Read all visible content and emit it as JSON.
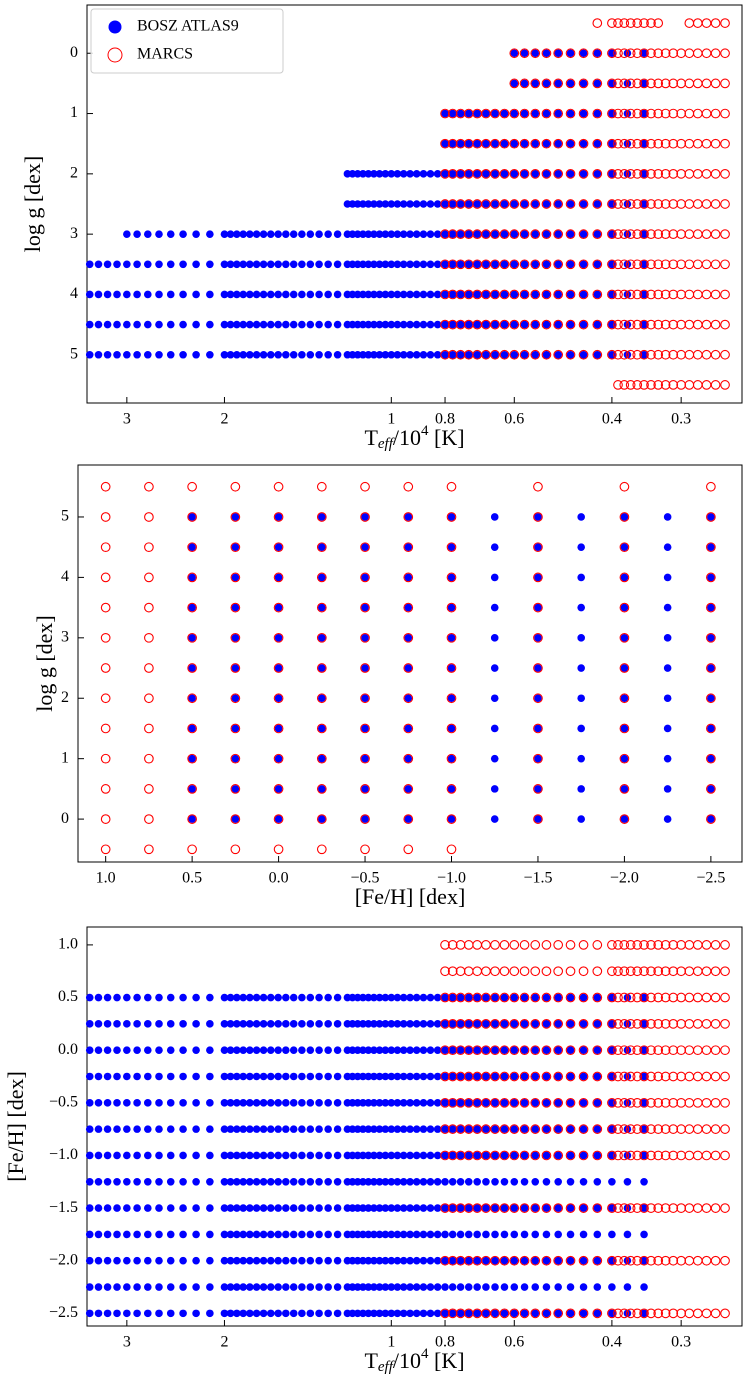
{
  "chart_data": [
    {
      "type": "scatter",
      "xscale": "log",
      "xlabel": {
        "main": "T",
        "sub": "eff",
        "mid": "/10",
        "sup": "4",
        "unit": " [K]"
      },
      "ylabel": "log g [dex]",
      "xlim": [
        3.54,
        0.233
      ],
      "ylim": [
        5.8,
        -0.8
      ],
      "xticks": [
        3,
        2,
        1,
        0.8,
        0.6,
        0.4,
        0.3
      ],
      "yticks": [
        0,
        1,
        2,
        3,
        4,
        5
      ],
      "legend": "upper left",
      "series": [
        {
          "name": "BOSZ ATLAS9",
          "color": "#0000ff",
          "marker": "filled",
          "x": [
            0.35,
            0.375,
            0.4,
            0.425,
            0.45,
            0.475,
            0.5,
            0.525,
            0.55,
            0.575,
            0.6,
            0.625,
            0.65,
            0.675,
            0.7,
            0.725,
            0.75,
            0.775,
            0.8,
            0.825,
            0.85,
            0.875,
            0.9,
            0.925,
            0.95,
            0.975,
            1.0,
            1.025,
            1.05,
            1.075,
            1.1,
            1.125,
            1.15,
            1.175,
            1.2,
            1.25,
            1.3,
            1.35,
            1.4,
            1.45,
            1.5,
            1.55,
            1.6,
            1.65,
            1.7,
            1.75,
            1.8,
            1.85,
            1.9,
            1.95,
            2.0,
            2.125,
            2.25,
            2.375,
            2.5,
            2.625,
            2.75,
            2.875,
            3.0,
            3.125,
            3.25,
            3.375,
            3.5
          ],
          "rows": [
            {
              "y": 0,
              "x_range": [
                0.35,
                0.6
              ]
            },
            {
              "y": 0.5,
              "x_range": [
                0.35,
                0.6
              ]
            },
            {
              "y": 1,
              "x_range": [
                0.35,
                0.8
              ]
            },
            {
              "y": 1.5,
              "x_range": [
                0.35,
                0.8
              ]
            },
            {
              "y": 2,
              "x_range": [
                0.35,
                1.2
              ]
            },
            {
              "y": 2.5,
              "x_range": [
                0.35,
                1.2
              ]
            },
            {
              "y": 3,
              "x_range": [
                0.35,
                3.0
              ]
            },
            {
              "y": 3.5,
              "x_range": [
                0.35,
                3.5
              ]
            },
            {
              "y": 4,
              "x_range": [
                0.35,
                3.5
              ]
            },
            {
              "y": 4.5,
              "x_range": [
                0.35,
                3.5
              ]
            },
            {
              "y": 5,
              "x_range": [
                0.35,
                3.5
              ]
            }
          ]
        },
        {
          "name": "MARCS",
          "color": "#ff0000",
          "marker": "open",
          "x": [
            0.25,
            0.26,
            0.27,
            0.28,
            0.29,
            0.3,
            0.31,
            0.32,
            0.33,
            0.34,
            0.35,
            0.36,
            0.37,
            0.38,
            0.39,
            0.4,
            0.425,
            0.45,
            0.475,
            0.5,
            0.525,
            0.55,
            0.575,
            0.6,
            0.625,
            0.65,
            0.675,
            0.7,
            0.725,
            0.75,
            0.775,
            0.8
          ],
          "rows": [
            {
              "y": -0.5,
              "x_range": [
                0.33,
                0.43
              ]
            },
            {
              "y": -0.5,
              "x_range": [
                0.25,
                0.29
              ]
            },
            {
              "y": 0,
              "x_range": [
                0.25,
                0.6
              ]
            },
            {
              "y": 0.5,
              "x_range": [
                0.25,
                0.6
              ]
            },
            {
              "y": 1,
              "x_range": [
                0.25,
                0.8
              ]
            },
            {
              "y": 1.5,
              "x_range": [
                0.25,
                0.8
              ]
            },
            {
              "y": 2,
              "x_range": [
                0.25,
                0.8
              ]
            },
            {
              "y": 2.5,
              "x_range": [
                0.25,
                0.8
              ]
            },
            {
              "y": 3,
              "x_range": [
                0.25,
                0.8
              ]
            },
            {
              "y": 3.5,
              "x_range": [
                0.25,
                0.8
              ]
            },
            {
              "y": 4,
              "x_range": [
                0.25,
                0.8
              ]
            },
            {
              "y": 4.5,
              "x_range": [
                0.25,
                0.8
              ]
            },
            {
              "y": 5,
              "x_range": [
                0.25,
                0.8
              ]
            },
            {
              "y": 5.5,
              "x_range": [
                0.25,
                0.39
              ]
            }
          ]
        }
      ]
    },
    {
      "type": "scatter",
      "xscale": "linear",
      "xlabel": "[Fe/H] [dex]",
      "ylabel": "log g [dex]",
      "xlim": [
        1.16,
        -2.68
      ],
      "ylim": [
        -0.71,
        5.86
      ],
      "xticks": [
        {
          "value": 1.0,
          "label": "1.0"
        },
        {
          "value": 0.5,
          "label": "0.5"
        },
        {
          "value": 0.0,
          "label": "0.0"
        },
        {
          "value": -0.5,
          "label": "−0.5"
        },
        {
          "value": -1.0,
          "label": "−1.0"
        },
        {
          "value": -1.5,
          "label": "−1.5"
        },
        {
          "value": -2.0,
          "label": "−2.0"
        },
        {
          "value": -2.5,
          "label": "−2.5"
        }
      ],
      "yticks": [
        0,
        1,
        2,
        3,
        4,
        5
      ],
      "series": [
        {
          "color": "#0000ff",
          "marker": "filled",
          "x": [
            0.5,
            0.25,
            0,
            -0.25,
            -0.5,
            -0.75,
            -1,
            -1.25,
            -1.5,
            -1.75,
            -2,
            -2.25,
            -2.5
          ],
          "rows": [
            {
              "y": 0,
              "x_range": [
                -2.5,
                0.5
              ]
            },
            {
              "y": 0.5,
              "x_range": [
                -2.5,
                0.5
              ]
            },
            {
              "y": 1,
              "x_range": [
                -2.5,
                0.5
              ]
            },
            {
              "y": 1.5,
              "x_range": [
                -2.5,
                0.5
              ]
            },
            {
              "y": 2,
              "x_range": [
                -2.5,
                0.5
              ]
            },
            {
              "y": 2.5,
              "x_range": [
                -2.5,
                0.5
              ]
            },
            {
              "y": 3,
              "x_range": [
                -2.5,
                0.5
              ]
            },
            {
              "y": 3.5,
              "x_range": [
                -2.5,
                0.5
              ]
            },
            {
              "y": 4,
              "x_range": [
                -2.5,
                0.5
              ]
            },
            {
              "y": 4.5,
              "x_range": [
                -2.5,
                0.5
              ]
            },
            {
              "y": 5,
              "x_range": [
                -2.5,
                0.5
              ]
            }
          ]
        },
        {
          "color": "#ff0000",
          "marker": "open",
          "x": [
            1,
            0.75,
            0.5,
            0.25,
            0,
            -0.25,
            -0.5,
            -0.75,
            -1,
            -1.5,
            -2,
            -2.5
          ],
          "rows": [
            {
              "y": -0.5,
              "x_range": [
                -1,
                1
              ]
            },
            {
              "y": 0,
              "x_range": [
                -2.5,
                1
              ]
            },
            {
              "y": 0.5,
              "x_range": [
                -2.5,
                1
              ]
            },
            {
              "y": 1,
              "x_range": [
                -2.5,
                1
              ]
            },
            {
              "y": 1.5,
              "x_range": [
                -2.5,
                1
              ]
            },
            {
              "y": 2,
              "x_range": [
                -2.5,
                1
              ]
            },
            {
              "y": 2.5,
              "x_range": [
                -2.5,
                1
              ]
            },
            {
              "y": 3,
              "x_range": [
                -2.5,
                1
              ]
            },
            {
              "y": 3.5,
              "x_range": [
                -2.5,
                1
              ]
            },
            {
              "y": 4,
              "x_range": [
                -2.5,
                1
              ]
            },
            {
              "y": 4.5,
              "x_range": [
                -2.5,
                1
              ]
            },
            {
              "y": 5,
              "x_range": [
                -2.5,
                1
              ]
            },
            {
              "y": 5.5,
              "x_range": [
                -2.5,
                1
              ]
            }
          ]
        }
      ]
    },
    {
      "type": "scatter",
      "xscale": "log",
      "xlabel": {
        "main": "T",
        "sub": "eff",
        "mid": "/10",
        "sup": "4",
        "unit": " [K]"
      },
      "ylabel": "[Fe/H] [dex]",
      "xlim": [
        3.54,
        0.233
      ],
      "ylim": [
        -2.62,
        1.17
      ],
      "xticks": [
        3,
        2,
        1,
        0.8,
        0.6,
        0.4,
        0.3
      ],
      "yticks": [
        {
          "value": 1.0,
          "label": "1.0"
        },
        {
          "value": 0.5,
          "label": "0.5"
        },
        {
          "value": 0.0,
          "label": "0.0"
        },
        {
          "value": -0.5,
          "label": "−0.5"
        },
        {
          "value": -1.0,
          "label": "−1.0"
        },
        {
          "value": -1.5,
          "label": "−1.5"
        },
        {
          "value": -2.0,
          "label": "−2.0"
        },
        {
          "value": -2.5,
          "label": "−2.5"
        }
      ],
      "series": [
        {
          "color": "#0000ff",
          "marker": "filled",
          "x": [
            0.35,
            0.375,
            0.4,
            0.425,
            0.45,
            0.475,
            0.5,
            0.525,
            0.55,
            0.575,
            0.6,
            0.625,
            0.65,
            0.675,
            0.7,
            0.725,
            0.75,
            0.775,
            0.8,
            0.825,
            0.85,
            0.875,
            0.9,
            0.925,
            0.95,
            0.975,
            1.0,
            1.025,
            1.05,
            1.075,
            1.1,
            1.125,
            1.15,
            1.175,
            1.2,
            1.25,
            1.3,
            1.35,
            1.4,
            1.45,
            1.5,
            1.55,
            1.6,
            1.65,
            1.7,
            1.75,
            1.8,
            1.85,
            1.9,
            1.95,
            2.0,
            2.125,
            2.25,
            2.375,
            2.5,
            2.625,
            2.75,
            2.875,
            3.0,
            3.125,
            3.25,
            3.375,
            3.5
          ],
          "rows": [
            {
              "y": -2.5,
              "x_range": [
                0.35,
                3.5
              ]
            },
            {
              "y": -2.25,
              "x_range": [
                0.35,
                3.5
              ]
            },
            {
              "y": -2,
              "x_range": [
                0.35,
                3.5
              ]
            },
            {
              "y": -1.75,
              "x_range": [
                0.35,
                3.5
              ]
            },
            {
              "y": -1.5,
              "x_range": [
                0.35,
                3.5
              ]
            },
            {
              "y": -1.25,
              "x_range": [
                0.35,
                3.5
              ]
            },
            {
              "y": -1,
              "x_range": [
                0.35,
                3.5
              ]
            },
            {
              "y": -0.75,
              "x_range": [
                0.35,
                3.5
              ]
            },
            {
              "y": -0.5,
              "x_range": [
                0.35,
                3.5
              ]
            },
            {
              "y": -0.25,
              "x_range": [
                0.35,
                3.5
              ]
            },
            {
              "y": 0,
              "x_range": [
                0.35,
                3.5
              ]
            },
            {
              "y": 0.25,
              "x_range": [
                0.35,
                3.5
              ]
            },
            {
              "y": 0.5,
              "x_range": [
                0.35,
                3.5
              ]
            }
          ]
        },
        {
          "color": "#ff0000",
          "marker": "open",
          "x": [
            0.25,
            0.26,
            0.27,
            0.28,
            0.29,
            0.3,
            0.31,
            0.32,
            0.33,
            0.34,
            0.35,
            0.36,
            0.37,
            0.38,
            0.39,
            0.4,
            0.425,
            0.45,
            0.475,
            0.5,
            0.525,
            0.55,
            0.575,
            0.6,
            0.625,
            0.65,
            0.675,
            0.7,
            0.725,
            0.75,
            0.775,
            0.8
          ],
          "rows": [
            {
              "y": 1,
              "x_range": [
                0.25,
                0.8
              ]
            },
            {
              "y": 0.75,
              "x_range": [
                0.25,
                0.8
              ]
            },
            {
              "y": 0.5,
              "x_range": [
                0.25,
                0.8
              ]
            },
            {
              "y": 0.25,
              "x_range": [
                0.25,
                0.8
              ]
            },
            {
              "y": 0,
              "x_range": [
                0.25,
                0.8
              ]
            },
            {
              "y": -0.25,
              "x_range": [
                0.25,
                0.8
              ]
            },
            {
              "y": -0.5,
              "x_range": [
                0.25,
                0.8
              ]
            },
            {
              "y": -0.75,
              "x_range": [
                0.25,
                0.8
              ]
            },
            {
              "y": -1,
              "x_range": [
                0.25,
                0.8
              ]
            },
            {
              "y": -1.5,
              "x_range": [
                0.25,
                0.8
              ]
            },
            {
              "y": -2,
              "x_range": [
                0.25,
                0.8
              ]
            },
            {
              "y": -2.5,
              "x_range": [
                0.25,
                0.8
              ]
            }
          ]
        }
      ]
    }
  ]
}
